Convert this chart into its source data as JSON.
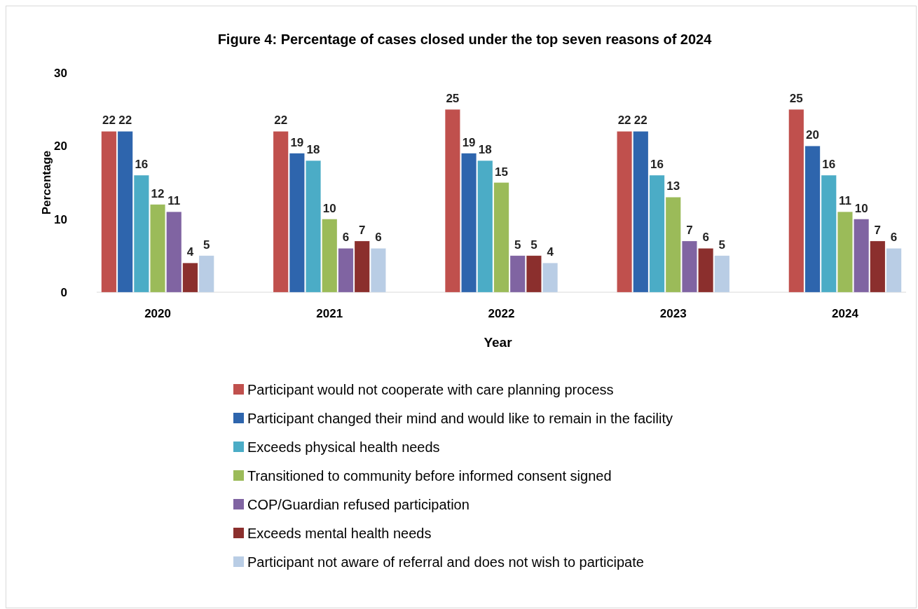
{
  "chart_data": {
    "type": "bar",
    "title": "Figure 4: Percentage of cases closed under the top seven reasons of 2024",
    "xlabel": "Year",
    "ylabel": "Percentage",
    "categories": [
      "2020",
      "2021",
      "2022",
      "2023",
      "2024"
    ],
    "series": [
      {
        "name": "Participant would not cooperate with care planning process",
        "color": "#c0504d",
        "values": [
          22,
          22,
          25,
          22,
          25
        ]
      },
      {
        "name": "Participant changed their mind and would like to remain in the facility",
        "color": "#2e65ad",
        "values": [
          22,
          19,
          19,
          22,
          20
        ]
      },
      {
        "name": "Exceeds physical health needs",
        "color": "#4bacc6",
        "values": [
          16,
          18,
          18,
          16,
          16
        ]
      },
      {
        "name": "Transitioned to community before informed consent signed",
        "color": "#9bbb59",
        "values": [
          12,
          10,
          15,
          13,
          11
        ]
      },
      {
        "name": "COP/Guardian refused participation",
        "color": "#8064a2",
        "values": [
          11,
          6,
          5,
          7,
          10
        ]
      },
      {
        "name": "Exceeds mental health needs",
        "color": "#8b2f2d",
        "values": [
          4,
          7,
          5,
          6,
          7
        ]
      },
      {
        "name": "Participant not aware of referral and does not wish to participate",
        "color": "#b9cde5",
        "values": [
          5,
          6,
          4,
          5,
          6
        ]
      }
    ],
    "ylim": [
      0,
      30
    ],
    "yticks": [
      0,
      10,
      20,
      30
    ],
    "grid": false,
    "legend": "bottom",
    "data_labels": true
  }
}
